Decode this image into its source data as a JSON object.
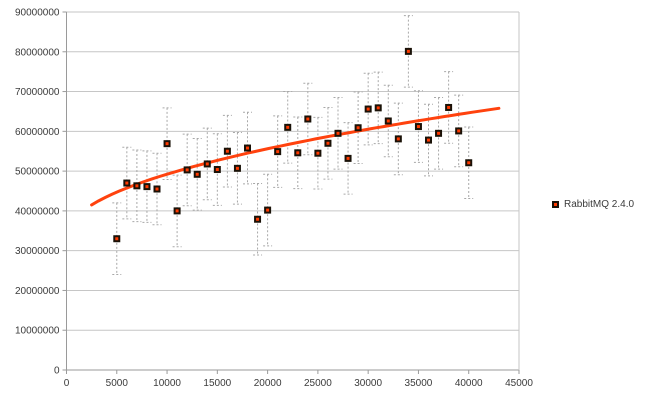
{
  "chart_data": {
    "type": "scatter",
    "title": "",
    "xlabel": "",
    "ylabel": "",
    "xlim": [
      0,
      45000
    ],
    "ylim": [
      0,
      90000000
    ],
    "grid": "horizontal",
    "legend_position": "right",
    "x_ticks": [
      0,
      5000,
      10000,
      15000,
      20000,
      25000,
      30000,
      35000,
      40000,
      45000
    ],
    "x_tick_labels": [
      "0",
      "5000",
      "10000",
      "15000",
      "20000",
      "25000",
      "30000",
      "35000",
      "40000",
      "45000"
    ],
    "y_ticks": [
      0,
      10000000,
      20000000,
      30000000,
      40000000,
      50000000,
      60000000,
      70000000,
      80000000,
      90000000
    ],
    "y_tick_labels": [
      "0",
      "10000000",
      "20000000",
      "30000000",
      "40000000",
      "50000000",
      "60000000",
      "70000000",
      "80000000",
      "90000000"
    ],
    "series": [
      {
        "name": "RabbitMQ 2.4.0",
        "x": [
          5000,
          6000,
          7000,
          8000,
          9000,
          10000,
          11000,
          12000,
          13000,
          14000,
          15000,
          16000,
          17000,
          18000,
          19000,
          20000,
          21000,
          22000,
          23000,
          24000,
          25000,
          26000,
          27000,
          28000,
          29000,
          30000,
          31000,
          32000,
          33000,
          34000,
          35000,
          36000,
          37000,
          38000,
          39000,
          40000
        ],
        "values": [
          33000000,
          47000000,
          46300000,
          46100000,
          45500000,
          56900000,
          40000000,
          50300000,
          49200000,
          51800000,
          50400000,
          55000000,
          50700000,
          55800000,
          37900000,
          40200000,
          54900000,
          61000000,
          54600000,
          63100000,
          54500000,
          57000000,
          59500000,
          53200000,
          60900000,
          65600000,
          65900000,
          62600000,
          58100000,
          80100000,
          61200000,
          57800000,
          59500000,
          66000000,
          60100000,
          52100000
        ],
        "error": 9000000,
        "error_style": "dashed"
      }
    ],
    "trendline": {
      "formula": "y = a + b*sqrt(x)",
      "a": 33800000,
      "b": 154300,
      "x_start": 2500,
      "x_end": 43000
    },
    "colors": {
      "trend": "#ff420e",
      "marker_fill": "#ff3a00",
      "marker_border": "#1a1208",
      "grid": "#c6c6c6",
      "axis": "#9a9a9a",
      "error_bar": "#a8a8a8",
      "tick_text": "#3b3b3b"
    }
  },
  "legend": {
    "label": "RabbitMQ 2.4.0"
  }
}
